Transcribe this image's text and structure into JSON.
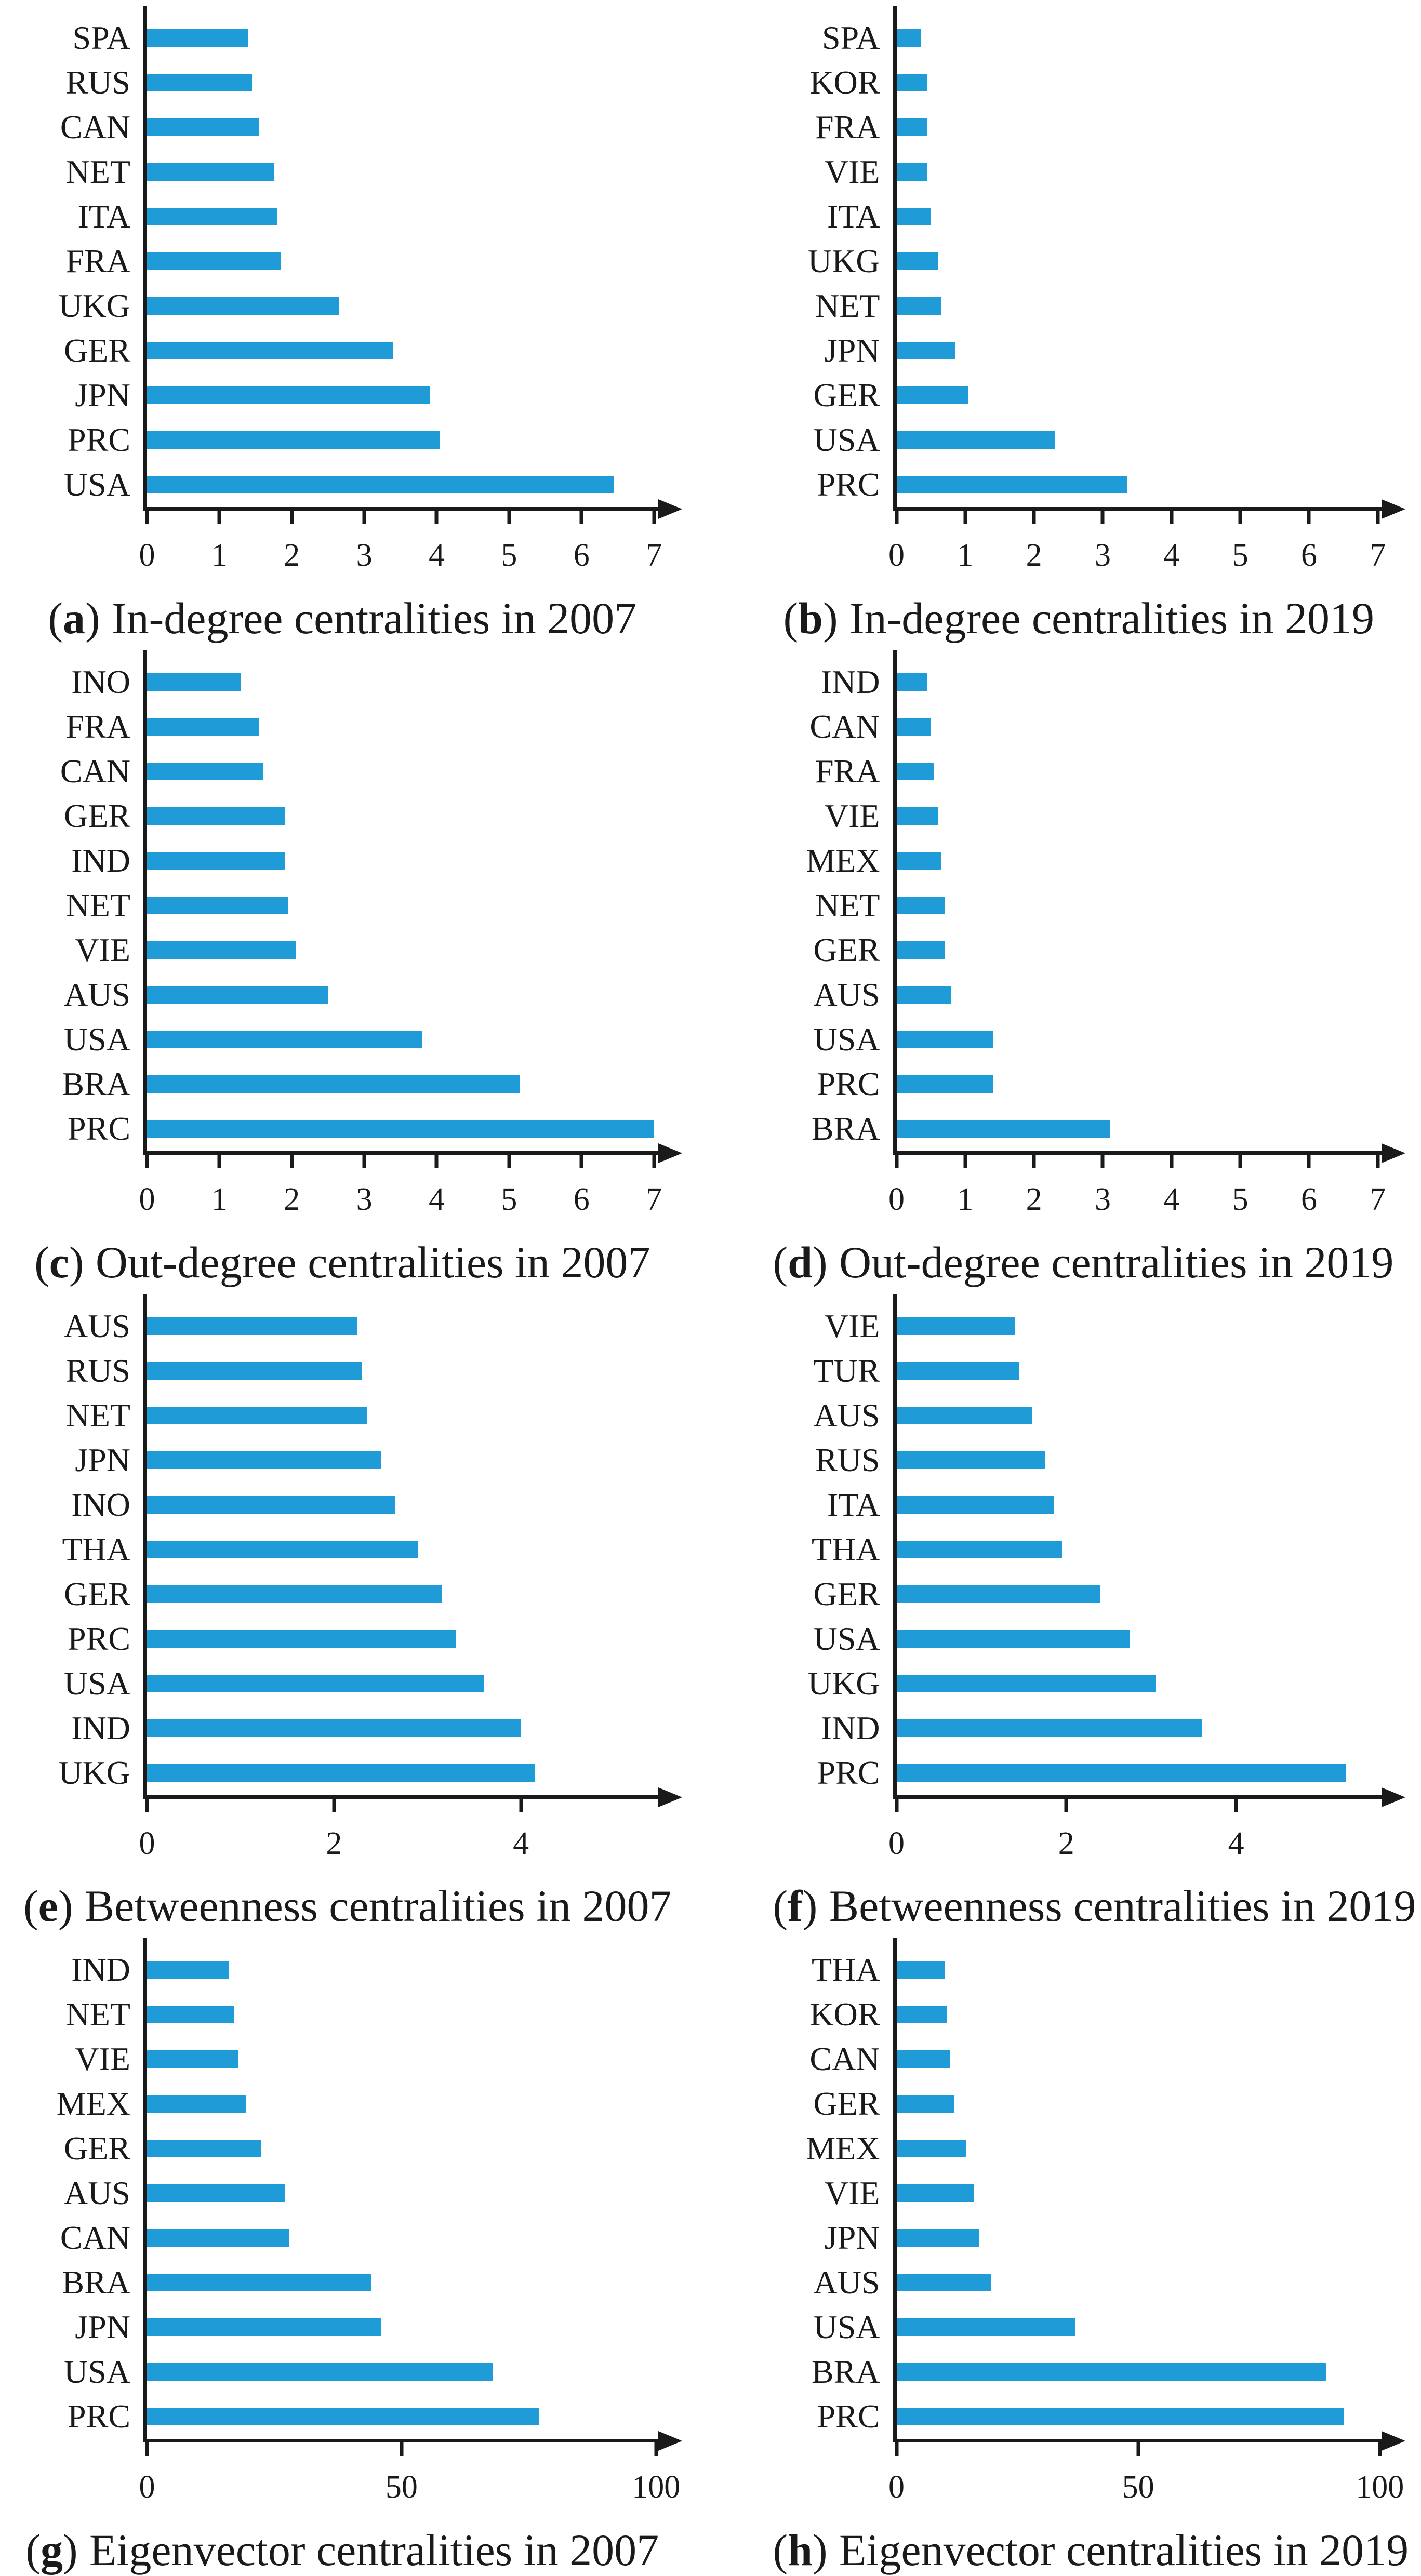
{
  "styles": {
    "background": "#ffffff",
    "text_color": "#1a1a1a",
    "axis_color": "#1a1a1a",
    "bar_color": "#1f9bd7"
  },
  "caption": {
    "open": "(",
    "close": ")"
  },
  "chart_data": [
    {
      "id": "a",
      "type": "bar",
      "orientation": "horizontal",
      "letter": "a",
      "title": "In-degree centralities in 2007",
      "xlabel": "",
      "ylabel": "",
      "grid": false,
      "legend": false,
      "xticks": [
        0,
        1,
        2,
        3,
        4,
        5,
        6,
        7
      ],
      "axis_end": 7.1,
      "categories": [
        "SPA",
        "RUS",
        "CAN",
        "NET",
        "ITA",
        "FRA",
        "UKG",
        "GER",
        "JPN",
        "PRC",
        "USA"
      ],
      "values": [
        1.4,
        1.45,
        1.55,
        1.75,
        1.8,
        1.85,
        2.65,
        3.4,
        3.9,
        4.05,
        6.45
      ]
    },
    {
      "id": "b",
      "type": "bar",
      "orientation": "horizontal",
      "letter": "b",
      "title": "In-degree centralities in 2019",
      "xlabel": "",
      "ylabel": "",
      "grid": false,
      "legend": false,
      "xticks": [
        0,
        1,
        2,
        3,
        4,
        5,
        6,
        7
      ],
      "axis_end": 7.1,
      "categories": [
        "SPA",
        "KOR",
        "FRA",
        "VIE",
        "ITA",
        "UKG",
        "NET",
        "JPN",
        "GER",
        "USA",
        "PRC"
      ],
      "values": [
        0.35,
        0.45,
        0.45,
        0.45,
        0.5,
        0.6,
        0.65,
        0.85,
        1.05,
        2.3,
        3.35
      ]
    },
    {
      "id": "c",
      "type": "bar",
      "orientation": "horizontal",
      "letter": "c",
      "title": "Out-degree centralities in 2007",
      "xlabel": "",
      "ylabel": "",
      "grid": false,
      "legend": false,
      "xticks": [
        0,
        1,
        2,
        3,
        4,
        5,
        6,
        7
      ],
      "axis_end": 7.1,
      "categories": [
        "INO",
        "FRA",
        "CAN",
        "GER",
        "IND",
        "NET",
        "VIE",
        "AUS",
        "USA",
        "BRA",
        "PRC"
      ],
      "values": [
        1.3,
        1.55,
        1.6,
        1.9,
        1.9,
        1.95,
        2.05,
        2.5,
        3.8,
        5.15,
        7.0
      ]
    },
    {
      "id": "d",
      "type": "bar",
      "orientation": "horizontal",
      "letter": "d",
      "title": "Out-degree centralities in 2019",
      "xlabel": "",
      "ylabel": "",
      "grid": false,
      "legend": false,
      "xticks": [
        0,
        1,
        2,
        3,
        4,
        5,
        6,
        7
      ],
      "axis_end": 7.1,
      "categories": [
        "IND",
        "CAN",
        "FRA",
        "VIE",
        "MEX",
        "NET",
        "GER",
        "AUS",
        "USA",
        "PRC",
        "BRA"
      ],
      "values": [
        0.45,
        0.5,
        0.55,
        0.6,
        0.65,
        0.7,
        0.7,
        0.8,
        1.4,
        1.4,
        3.1
      ]
    },
    {
      "id": "e",
      "type": "bar",
      "orientation": "horizontal",
      "letter": "e",
      "title": "Betweenness centralities in 2007",
      "xlabel": "",
      "ylabel": "",
      "grid": false,
      "legend": false,
      "xticks": [
        0,
        2,
        4
      ],
      "axis_end": 5.5,
      "categories": [
        "AUS",
        "RUS",
        "NET",
        "JPN",
        "INO",
        "THA",
        "GER",
        "PRC",
        "USA",
        "IND",
        "UKG"
      ],
      "values": [
        2.25,
        2.3,
        2.35,
        2.5,
        2.65,
        2.9,
        3.15,
        3.3,
        3.6,
        4.0,
        4.15
      ]
    },
    {
      "id": "f",
      "type": "bar",
      "orientation": "horizontal",
      "letter": "f",
      "title": "Betweenness centralities in 2019",
      "xlabel": "",
      "ylabel": "",
      "grid": false,
      "legend": false,
      "xticks": [
        0,
        2,
        4
      ],
      "axis_end": 5.75,
      "categories": [
        "VIE",
        "TUR",
        "AUS",
        "RUS",
        "ITA",
        "THA",
        "GER",
        "USA",
        "UKG",
        "IND",
        "PRC"
      ],
      "values": [
        1.4,
        1.45,
        1.6,
        1.75,
        1.85,
        1.95,
        2.4,
        2.75,
        3.05,
        3.6,
        5.3
      ]
    },
    {
      "id": "g",
      "type": "bar",
      "orientation": "horizontal",
      "letter": "g",
      "title": "Eigenvector centralities in 2007",
      "xlabel": "",
      "ylabel": "",
      "grid": false,
      "legend": false,
      "xticks": [
        0,
        50,
        100
      ],
      "axis_end": 101,
      "categories": [
        "IND",
        "NET",
        "VIE",
        "MEX",
        "GER",
        "AUS",
        "CAN",
        "BRA",
        "JPN",
        "USA",
        "PRC"
      ],
      "values": [
        16,
        17,
        18,
        19.5,
        22.5,
        27,
        28,
        44,
        46,
        68,
        77
      ]
    },
    {
      "id": "h",
      "type": "bar",
      "orientation": "horizontal",
      "letter": "h",
      "title": "Eigenvector centralities in 2019",
      "xlabel": "",
      "ylabel": "",
      "grid": false,
      "legend": false,
      "xticks": [
        0,
        50,
        100
      ],
      "axis_end": 101,
      "categories": [
        "THA",
        "KOR",
        "CAN",
        "GER",
        "MEX",
        "VIE",
        "JPN",
        "AUS",
        "USA",
        "BRA",
        "PRC"
      ],
      "values": [
        10,
        10.5,
        11,
        12,
        14.5,
        16,
        17,
        19.5,
        37,
        89,
        92.5
      ]
    }
  ]
}
